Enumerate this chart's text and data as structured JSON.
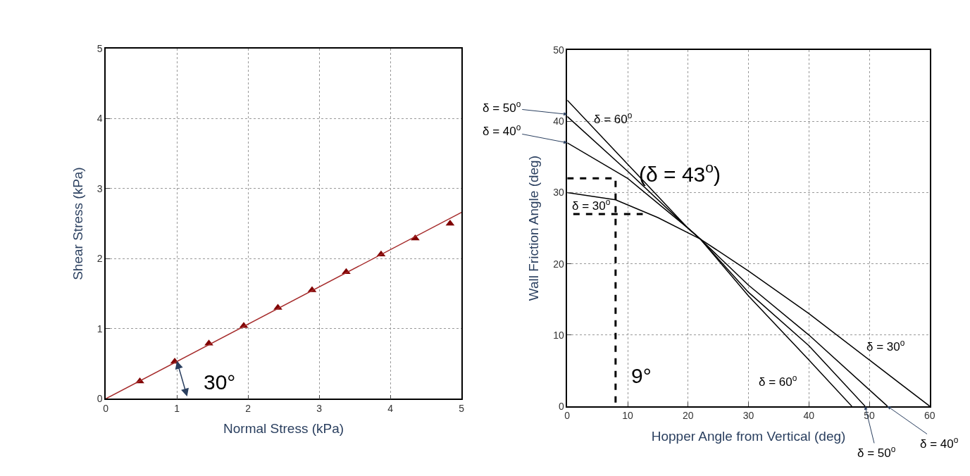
{
  "chart_data": [
    {
      "type": "scatter",
      "xlabel": "Normal Stress (kPa)",
      "ylabel": "Shear Stress (kPa)",
      "xlim": [
        0,
        5
      ],
      "ylim": [
        0,
        5
      ],
      "xticks": [
        0,
        1,
        2,
        3,
        4,
        5
      ],
      "yticks": [
        0,
        1,
        2,
        3,
        4,
        5
      ],
      "grid": true,
      "series": [
        {
          "type": "scatter",
          "color": "#7f0000",
          "marker": "triangle",
          "x": [
            0.48,
            0.97,
            1.45,
            1.94,
            2.42,
            2.9,
            3.38,
            3.87,
            4.35,
            4.84
          ],
          "values": [
            0.25,
            0.53,
            0.79,
            1.04,
            1.3,
            1.55,
            1.81,
            2.06,
            2.29,
            2.5
          ]
        },
        {
          "type": "line",
          "color": "#a52a2a",
          "marker": "none",
          "line_style": "solid",
          "x": [
            0,
            5
          ],
          "values": [
            0,
            2.66
          ]
        }
      ],
      "annotations": [
        {
          "text": "30°",
          "x": 1.0,
          "y": 0.54
        }
      ]
    },
    {
      "type": "line",
      "xlabel": "Hopper Angle from Vertical (deg)",
      "ylabel": "Wall Friction Angle (deg)",
      "xlim": [
        0,
        60
      ],
      "ylim": [
        0,
        50
      ],
      "xticks": [
        0,
        10,
        20,
        30,
        40,
        50,
        60
      ],
      "yticks": [
        0,
        10,
        20,
        30,
        40,
        50
      ],
      "grid": true,
      "marker": "none",
      "series": [
        {
          "color": "#000000",
          "line_style": "solid",
          "x": [
            0,
            8,
            15,
            22,
            30,
            40,
            50,
            60
          ],
          "values": [
            30,
            29,
            26.5,
            23.5,
            19,
            13,
            6.5,
            0
          ]
        },
        {
          "color": "#000000",
          "line_style": "solid",
          "x": [
            0,
            10,
            20,
            22,
            30,
            40,
            53
          ],
          "values": [
            37,
            32,
            25,
            23.5,
            17,
            10,
            0
          ]
        },
        {
          "color": "#000000",
          "line_style": "solid",
          "x": [
            0,
            10,
            20,
            22,
            30,
            40,
            49.3
          ],
          "values": [
            40.7,
            33,
            25,
            23.5,
            16,
            8.5,
            0
          ]
        },
        {
          "color": "#000000",
          "line_style": "solid",
          "x": [
            0,
            10,
            20,
            22,
            30,
            40,
            47.1
          ],
          "values": [
            43,
            34,
            25,
            23.5,
            15.5,
            6.5,
            0
          ]
        },
        {
          "color": "#000000",
          "line_style": "dashed",
          "x": [
            0,
            8,
            8
          ],
          "values": [
            32,
            32,
            0
          ]
        },
        {
          "color": "#000000",
          "line_style": "dashed",
          "x": [
            1,
            12.5
          ],
          "values": [
            27,
            27
          ]
        }
      ],
      "annotations": [
        {
          "text": "δ = 50$^{o}$",
          "x": 0,
          "y": 41
        },
        {
          "text": "δ = 40$^{o}$",
          "x": 0,
          "y": 37
        },
        "δ = 60$^{o}$",
        {
          "text": "δ = 30$^{o}$",
          "x": 4,
          "y": 27
        },
        "(δ = 43$^{o}$)",
        "9°",
        "δ = 30$^{o}$",
        "δ = 60$^{o}$",
        {
          "text": "δ = 50$^{o}$",
          "x": 49.3,
          "y": 0
        },
        {
          "text": "δ = 40$^{o}$",
          "x": 53,
          "y": 0
        }
      ]
    }
  ]
}
